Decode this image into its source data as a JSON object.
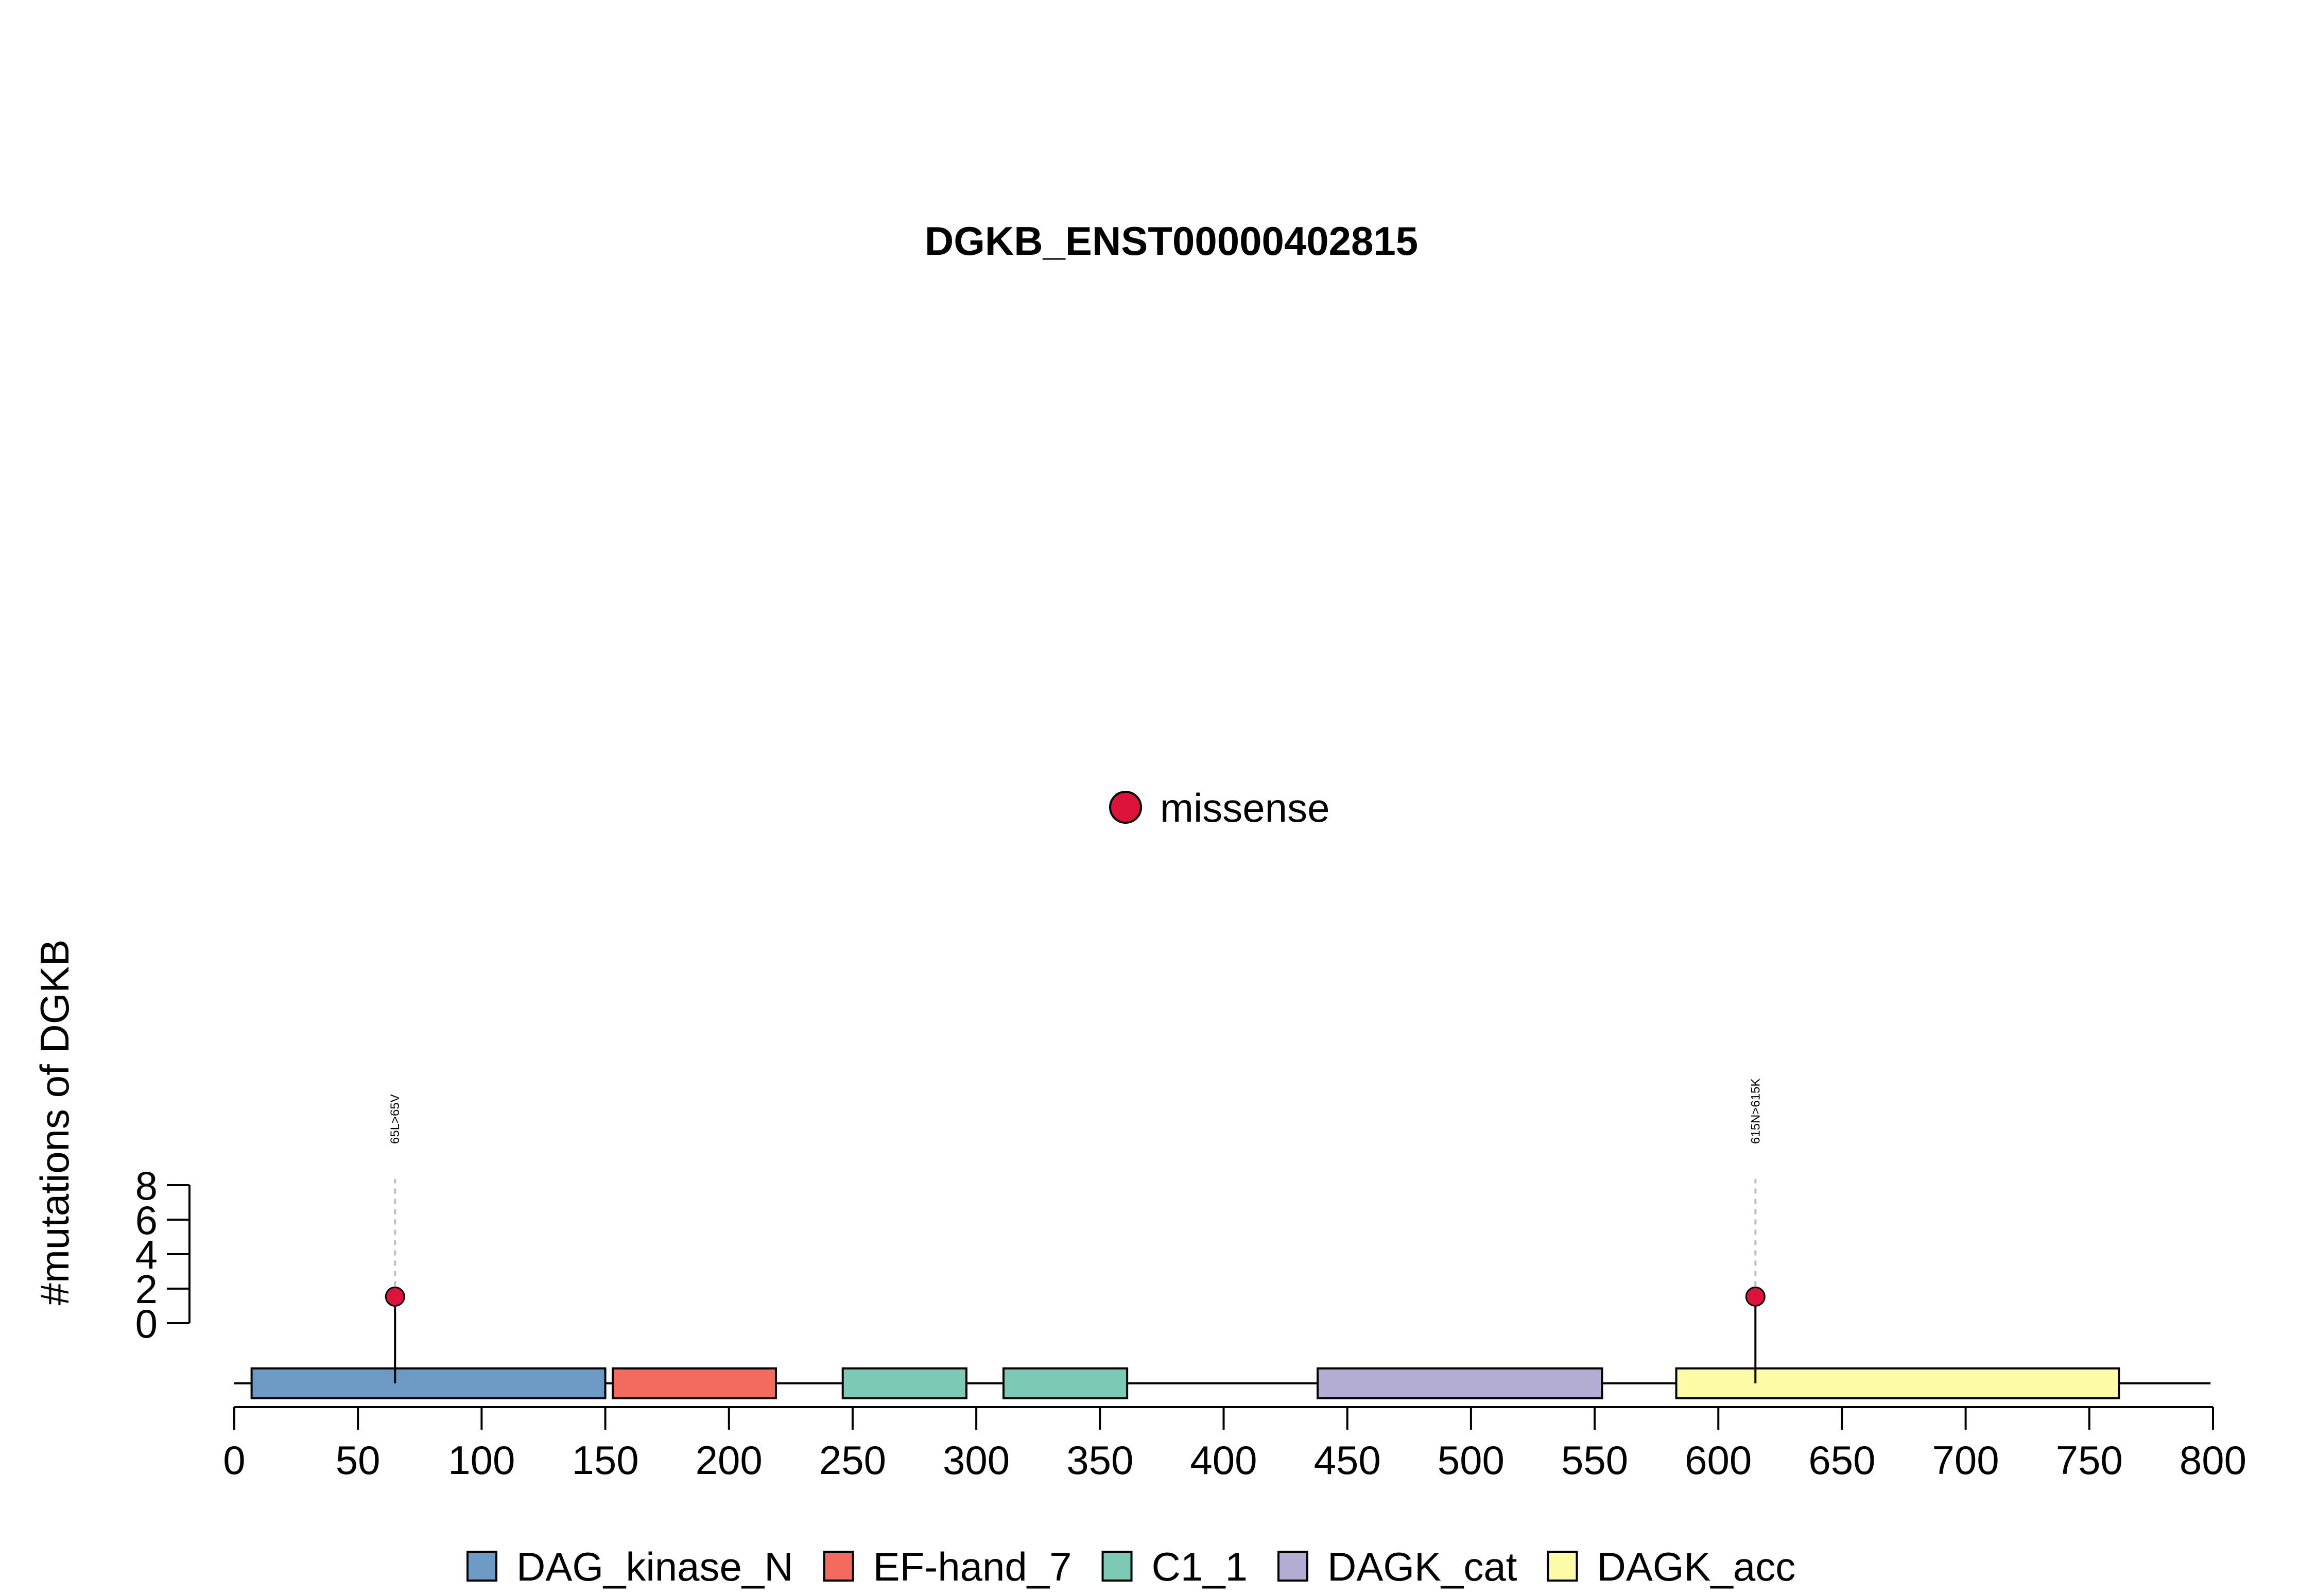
{
  "chart_data": {
    "type": "lollipop",
    "title": "DGKB_ENST00000402815",
    "ylabel": "#mutations of DGKB",
    "protein_length": 799,
    "xlim": [
      0,
      800
    ],
    "x_ticks": [
      0,
      50,
      100,
      150,
      200,
      250,
      300,
      350,
      400,
      450,
      500,
      550,
      600,
      650,
      700,
      750,
      800
    ],
    "y_ticks": [
      0,
      2,
      4,
      6,
      8
    ],
    "ylim": [
      0,
      8
    ],
    "mutation_legend": {
      "label": "missense",
      "color": "#DC143C"
    },
    "mutations": [
      {
        "position": 65,
        "count": 1,
        "label": "65L>65V",
        "type": "missense"
      },
      {
        "position": 615,
        "count": 1,
        "label": "615N>615K",
        "type": "missense"
      }
    ],
    "domains": [
      {
        "name": "DAG_kinase_N",
        "start": 7,
        "end": 150,
        "color": "#6C9AC4"
      },
      {
        "name": "EF-hand_7",
        "start": 153,
        "end": 219,
        "color": "#F26B5E"
      },
      {
        "name": "C1_1",
        "start": 246,
        "end": 296,
        "color": "#7CC9B6"
      },
      {
        "name": "C1_1",
        "start": 311,
        "end": 361,
        "color": "#7CC9B6"
      },
      {
        "name": "DAGK_cat",
        "start": 438,
        "end": 553,
        "color": "#B3ADD3"
      },
      {
        "name": "DAGK_acc",
        "start": 583,
        "end": 762,
        "color": "#FCFCA6"
      }
    ],
    "domain_legend": [
      {
        "name": "DAG_kinase_N",
        "color": "#6C9AC4"
      },
      {
        "name": "EF-hand_7",
        "color": "#F26B5E"
      },
      {
        "name": "C1_1",
        "color": "#7CC9B6"
      },
      {
        "name": "DAGK_cat",
        "color": "#B3ADD3"
      },
      {
        "name": "DAGK_acc",
        "color": "#FCFCA6"
      }
    ]
  }
}
